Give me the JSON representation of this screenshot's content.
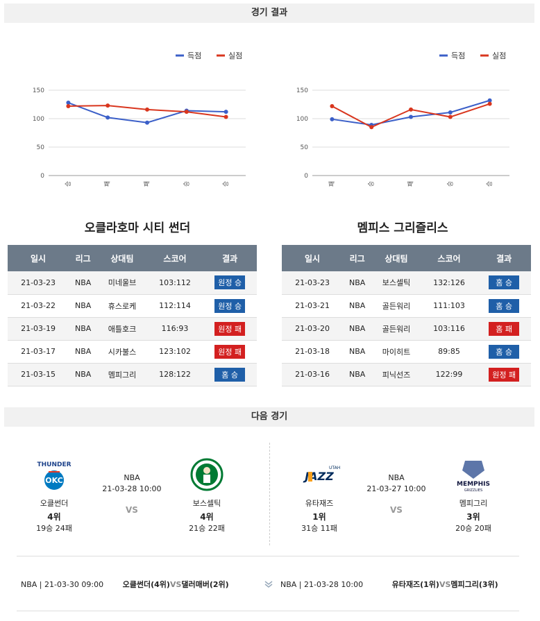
{
  "result_header": "경기 결과",
  "next_header": "다음 경기",
  "legend": {
    "scored": "득점",
    "conceded": "실점"
  },
  "colors": {
    "scored": "#3b5fc8",
    "conceded": "#d9361e"
  },
  "left": {
    "team": "오클라호마 시티 썬더",
    "chart_data": {
      "type": "line",
      "categories": [
        "승",
        "패",
        "패",
        "승",
        "승"
      ],
      "ylim": [
        0,
        150
      ],
      "yticks": [
        0,
        50,
        100,
        150
      ],
      "series": [
        {
          "name": "득점",
          "values": [
            128,
            102,
            93,
            114,
            112
          ]
        },
        {
          "name": "실점",
          "values": [
            122,
            123,
            116,
            112,
            103
          ]
        }
      ]
    },
    "columns": [
      "일시",
      "리그",
      "상대팀",
      "스코어",
      "결과"
    ],
    "rows": [
      {
        "date": "21-03-23",
        "league": "NBA",
        "opp": "미네울브",
        "score": "103:112",
        "result": "원정 승",
        "type": "win"
      },
      {
        "date": "21-03-22",
        "league": "NBA",
        "opp": "휴스로케",
        "score": "112:114",
        "result": "원정 승",
        "type": "win"
      },
      {
        "date": "21-03-19",
        "league": "NBA",
        "opp": "애틀호크",
        "score": "116:93",
        "result": "원정 패",
        "type": "loss"
      },
      {
        "date": "21-03-17",
        "league": "NBA",
        "opp": "시카불스",
        "score": "123:102",
        "result": "원정 패",
        "type": "loss"
      },
      {
        "date": "21-03-15",
        "league": "NBA",
        "opp": "멤피그리",
        "score": "128:122",
        "result": "홈 승",
        "type": "win"
      }
    ]
  },
  "right": {
    "team": "멤피스 그리즐리스",
    "chart_data": {
      "type": "line",
      "categories": [
        "패",
        "승",
        "패",
        "승",
        "승"
      ],
      "ylim": [
        0,
        150
      ],
      "yticks": [
        0,
        50,
        100,
        150
      ],
      "series": [
        {
          "name": "득점",
          "values": [
            99,
            89,
            103,
            111,
            132
          ]
        },
        {
          "name": "실점",
          "values": [
            122,
            85,
            116,
            103,
            126
          ]
        }
      ]
    },
    "columns": [
      "일시",
      "리그",
      "상대팀",
      "스코어",
      "결과"
    ],
    "rows": [
      {
        "date": "21-03-23",
        "league": "NBA",
        "opp": "보스셀틱",
        "score": "132:126",
        "result": "홈 승",
        "type": "win"
      },
      {
        "date": "21-03-21",
        "league": "NBA",
        "opp": "골든워리",
        "score": "111:103",
        "result": "홈 승",
        "type": "win"
      },
      {
        "date": "21-03-20",
        "league": "NBA",
        "opp": "골든워리",
        "score": "103:116",
        "result": "홈 패",
        "type": "loss"
      },
      {
        "date": "21-03-18",
        "league": "NBA",
        "opp": "마이히트",
        "score": "89:85",
        "result": "홈 승",
        "type": "win"
      },
      {
        "date": "21-03-16",
        "league": "NBA",
        "opp": "피닉선즈",
        "score": "122:99",
        "result": "원정 패",
        "type": "loss"
      }
    ]
  },
  "next": {
    "left": {
      "home": {
        "name": "오클썬더",
        "rank": "4위",
        "record": "19승 24패",
        "logo": "thunder-logo"
      },
      "away": {
        "name": "보스셀틱",
        "rank": "4위",
        "record": "21승 22패",
        "logo": "celtics-logo"
      },
      "league": "NBA",
      "datetime": "21-03-28 10:00",
      "vs": "VS"
    },
    "right": {
      "home": {
        "name": "유타재즈",
        "rank": "1위",
        "record": "31승 11패",
        "logo": "jazz-logo"
      },
      "away": {
        "name": "멤피그리",
        "rank": "3위",
        "record": "20승 20패",
        "logo": "grizzlies-logo"
      },
      "league": "NBA",
      "datetime": "21-03-27 10:00",
      "vs": "VS"
    }
  },
  "footer": {
    "left": {
      "meta": "NBA | 21-03-30 09:00",
      "home": "오클썬더(4위)",
      "vs": "VS",
      "away": "댈러매버(2위)"
    },
    "right": {
      "meta": "NBA | 21-03-28 10:00",
      "home": "유타재즈(1위)",
      "vs": "VS",
      "away": "멤피그리(3위)"
    }
  }
}
